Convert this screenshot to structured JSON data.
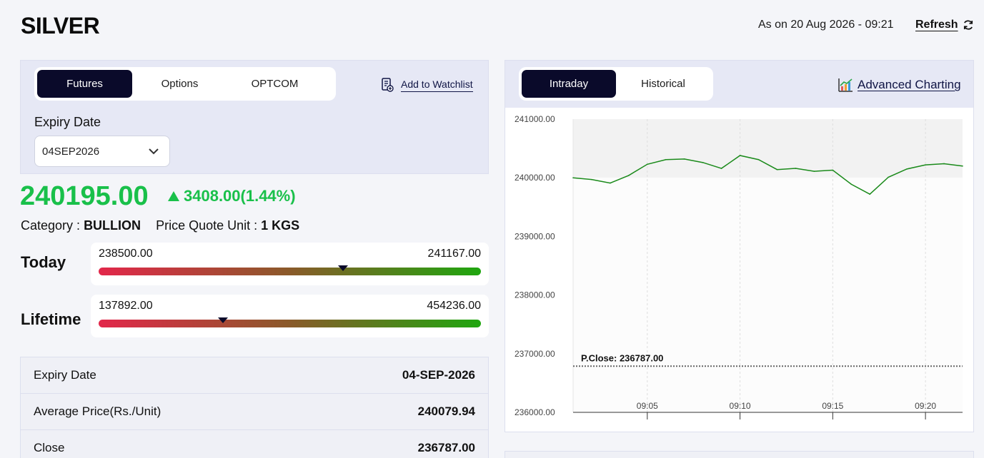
{
  "header": {
    "title": "SILVER",
    "as_on": "As on 20 Aug 2026 - 09:21",
    "refresh_label": "Refresh"
  },
  "product_tabs": [
    {
      "label": "Futures",
      "active": true
    },
    {
      "label": "Options",
      "active": false
    },
    {
      "label": "OPTCOM",
      "active": false
    }
  ],
  "watchlist_label": "Add to Watchlist",
  "expiry": {
    "label": "Expiry Date",
    "selected": "04SEP2026"
  },
  "price": {
    "ltp": "240195.00",
    "change": "3408.00(1.44%)",
    "category_label": "Category :",
    "category_value": "BULLION",
    "unit_label": "Price Quote Unit :",
    "unit_value": "1 KGS"
  },
  "ranges": {
    "today": {
      "label": "Today",
      "low": "238500.00",
      "high": "241167.00",
      "marker_fraction": 0.64
    },
    "lifetime": {
      "label": "Lifetime",
      "low": "137892.00",
      "high": "454236.00",
      "marker_fraction": 0.325
    }
  },
  "details": [
    {
      "label": "Expiry Date",
      "value": "04-SEP-2026"
    },
    {
      "label": "Average Price(Rs./Unit)",
      "value": "240079.94"
    },
    {
      "label": "Close",
      "value": "236787.00"
    }
  ],
  "chart_tabs": [
    {
      "label": "Intraday",
      "active": true
    },
    {
      "label": "Historical",
      "active": false
    }
  ],
  "advanced_charting_label": "Advanced Charting",
  "colors": {
    "accent_dark": "#0a0a2a",
    "positive": "#19c04a",
    "line": "#1a8a1a"
  },
  "chart_data": {
    "type": "line",
    "title": "",
    "xlabel": "",
    "ylabel": "",
    "ylim": [
      236000,
      241000
    ],
    "xlim": [
      "09:01",
      "09:22"
    ],
    "y_ticks": [
      "241000.00",
      "240000.00",
      "239000.00",
      "238000.00",
      "237000.00",
      "236000.00"
    ],
    "x_ticks": [
      "09:05",
      "09:10",
      "09:15",
      "09:20"
    ],
    "grid": true,
    "reference_line": {
      "label": "P.Close: 236787.00",
      "value": 236787
    },
    "series": [
      {
        "x": [
          "09:01",
          "09:02",
          "09:03",
          "09:04",
          "09:05",
          "09:06",
          "09:07",
          "09:08",
          "09:09",
          "09:10",
          "09:11",
          "09:12",
          "09:13",
          "09:14",
          "09:15",
          "09:16",
          "09:17",
          "09:18",
          "09:19",
          "09:20",
          "09:21",
          "09:22"
        ],
        "values": [
          240000,
          239970,
          239910,
          240040,
          240230,
          240310,
          240320,
          240260,
          240160,
          240380,
          240310,
          240140,
          240160,
          240110,
          240130,
          239890,
          239720,
          240010,
          240150,
          240220,
          240240,
          240200
        ]
      }
    ]
  }
}
